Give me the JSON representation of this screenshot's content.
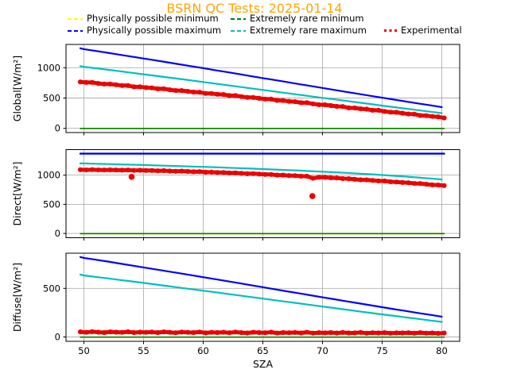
{
  "title": {
    "text": "BSRN QC Tests: 2025-01-14",
    "color": "#ffa500"
  },
  "legend": {
    "items": [
      {
        "label": "Physically possible minimum",
        "color": "#ffff00",
        "style": "dashed"
      },
      {
        "label": "Physically possible maximum",
        "color": "#0000ff",
        "style": "dashed"
      },
      {
        "label": "Extremely rare minimum",
        "color": "#008000",
        "style": "dashed"
      },
      {
        "label": "Extremely rare maximum",
        "color": "#00bfbf",
        "style": "dashed"
      },
      {
        "label": "Experimental",
        "color": "#ee0000",
        "style": "dotted"
      }
    ]
  },
  "xlabel": "SZA",
  "colors": {
    "grid": "#b0b0b0",
    "spine": "#000000",
    "background": "#ffffff"
  },
  "chart_data": [
    {
      "type": "line",
      "name": "global",
      "ylabel": "Global[W/m²]",
      "xlabel": "SZA",
      "xlim": [
        48.5,
        81.5
      ],
      "ylim": [
        -70,
        1384
      ],
      "xticks": [
        50,
        55,
        60,
        65,
        70,
        75,
        80
      ],
      "yticks": [
        0,
        500,
        1000
      ],
      "grid": true,
      "x_grid": [
        49.7,
        50,
        51,
        52,
        53,
        54,
        55,
        56,
        57,
        58,
        59,
        60,
        61,
        62,
        63,
        64,
        65,
        66,
        67,
        68,
        69,
        70,
        71,
        72,
        73,
        74,
        75,
        76,
        77,
        78,
        79,
        80
      ],
      "series": [
        {
          "name": "Physically possible minimum",
          "color": "#ffff00",
          "y_const": -4,
          "width": 1.6
        },
        {
          "name": "Extremely rare minimum",
          "color": "#008000",
          "y_const": -2,
          "width": 1.6
        },
        {
          "name": "Physically possible maximum",
          "color": "#0000ff",
          "x": "grid",
          "width": 2.2,
          "y": [
            1321,
            1307,
            1276,
            1246,
            1215,
            1184,
            1152,
            1121,
            1089,
            1057,
            1025,
            993,
            960,
            928,
            895,
            862,
            829,
            797,
            764,
            731,
            699,
            666,
            633,
            601,
            569,
            537,
            505,
            473,
            442,
            411,
            381,
            351
          ]
        },
        {
          "name": "Extremely rare maximum",
          "color": "#00bfbf",
          "x": "grid",
          "width": 2.2,
          "y": [
            1027,
            1015,
            991,
            966,
            942,
            917,
            892,
            866,
            841,
            816,
            790,
            764,
            738,
            712,
            686,
            660,
            633,
            607,
            581,
            555,
            529,
            503,
            477,
            452,
            426,
            401,
            374,
            349,
            324,
            299,
            275,
            251
          ]
        },
        {
          "name": "Experimental",
          "color": "#ee0000",
          "marker": true,
          "x_start": 49.7,
          "x_step": 0.5,
          "y": [
            766,
            756,
            758,
            741,
            730,
            730,
            718,
            706,
            705,
            685,
            685,
            673,
            668,
            652,
            653,
            636,
            623,
            623,
            610,
            598,
            596,
            576,
            575,
            562,
            557,
            540,
            540,
            523,
            510,
            509,
            495,
            483,
            481,
            460,
            458,
            445,
            439,
            422,
            422,
            404,
            390,
            389,
            375,
            362,
            359,
            338,
            336,
            322,
            316,
            298,
            298,
            279,
            266,
            264,
            250,
            236,
            234,
            212,
            209,
            196,
            189,
            171
          ]
        }
      ]
    },
    {
      "type": "line",
      "name": "direct",
      "ylabel": "Direct[W/m²]",
      "xlabel": "SZA",
      "xlim": [
        48.5,
        81.5
      ],
      "ylim": [
        -73,
        1436
      ],
      "xticks": [
        50,
        55,
        60,
        65,
        70,
        75,
        80
      ],
      "yticks": [
        0,
        500,
        1000
      ],
      "grid": true,
      "x_grid": [
        49.7,
        50,
        51,
        52,
        53,
        54,
        55,
        56,
        57,
        58,
        59,
        60,
        61,
        62,
        63,
        64,
        65,
        66,
        67,
        68,
        69,
        70,
        71,
        72,
        73,
        74,
        75,
        76,
        77,
        78,
        79,
        80
      ],
      "series": [
        {
          "name": "Physically possible minimum",
          "color": "#ffff00",
          "y_const": -4,
          "width": 1.6
        },
        {
          "name": "Extremely rare minimum",
          "color": "#008000",
          "y_const": -2,
          "width": 1.6
        },
        {
          "name": "Physically possible maximum",
          "color": "#0000ff",
          "y_const": 1367,
          "width": 2.4
        },
        {
          "name": "Extremely rare maximum",
          "color": "#00bfbf",
          "x": "grid",
          "width": 2.2,
          "y": [
            1199,
            1199,
            1194,
            1189,
            1183,
            1178,
            1172,
            1166,
            1160,
            1154,
            1147,
            1141,
            1134,
            1126,
            1119,
            1111,
            1103,
            1095,
            1086,
            1077,
            1068,
            1058,
            1048,
            1037,
            1026,
            1014,
            1001,
            988,
            974,
            959,
            942,
            925
          ]
        },
        {
          "name": "Experimental",
          "color": "#ee0000",
          "marker": true,
          "x_start": 49.7,
          "x_step": 0.5,
          "y": [
            1092,
            1088,
            1093,
            1088,
            1086,
            1090,
            1087,
            1084,
            1087,
            1080,
            1082,
            1078,
            1079,
            1073,
            1076,
            1069,
            1065,
            1067,
            1062,
            1057,
            1059,
            1050,
            1050,
            1045,
            1044,
            1036,
            1037,
            1029,
            1023,
            1024,
            1017,
            1010,
            1011,
            1000,
            999,
            992,
            990,
            980,
            980,
            945,
            963,
            961,
            953,
            950,
            940,
            939,
            928,
            920,
            918,
            909,
            900,
            899,
            885,
            882,
            873,
            869,
            857,
            855,
            843,
            833,
            830,
            820
          ],
          "outliers": [
            [
              54.0,
              970
            ],
            [
              69.15,
              640
            ]
          ]
        }
      ]
    },
    {
      "type": "line",
      "name": "diffuse",
      "ylabel": "Diffuse[W/m²]",
      "xlabel": "SZA",
      "xlim": [
        48.5,
        81.5
      ],
      "ylim": [
        -45,
        862
      ],
      "xticks": [
        50,
        55,
        60,
        65,
        70,
        75,
        80
      ],
      "yticks": [
        0,
        500
      ],
      "grid": true,
      "x_grid": [
        49.7,
        50,
        51,
        52,
        53,
        54,
        55,
        56,
        57,
        58,
        59,
        60,
        61,
        62,
        63,
        64,
        65,
        66,
        67,
        68,
        69,
        70,
        71,
        72,
        73,
        74,
        75,
        76,
        77,
        78,
        79,
        80
      ],
      "series": [
        {
          "name": "Physically possible minimum",
          "color": "#ffff00",
          "y_const": -4,
          "width": 1.6
        },
        {
          "name": "Extremely rare minimum",
          "color": "#008000",
          "y_const": -2,
          "width": 1.6
        },
        {
          "name": "Physically possible maximum",
          "color": "#0000ff",
          "x": "grid",
          "width": 2.2,
          "y": [
            823,
            814,
            795,
            776,
            756,
            736,
            716,
            696,
            676,
            656,
            636,
            615,
            595,
            574,
            554,
            533,
            512,
            491,
            470,
            450,
            429,
            408,
            388,
            367,
            347,
            327,
            306,
            286,
            267,
            247,
            228,
            209
          ]
        },
        {
          "name": "Extremely rare maximum",
          "color": "#00bfbf",
          "x": "grid",
          "width": 2.2,
          "y": [
            641,
            633,
            618,
            603,
            587,
            572,
            556,
            540,
            524,
            508,
            492,
            476,
            460,
            444,
            427,
            411,
            395,
            378,
            362,
            346,
            329,
            313,
            297,
            281,
            264,
            248,
            232,
            217,
            201,
            186,
            170,
            155
          ]
        },
        {
          "name": "Experimental",
          "color": "#ee0000",
          "marker": true,
          "x_start": 49.7,
          "x_step": 0.5,
          "y": [
            52,
            47,
            54,
            49,
            45,
            52,
            49,
            47,
            53,
            45,
            49,
            47,
            50,
            45,
            52,
            47,
            43,
            50,
            47,
            45,
            51,
            42,
            47,
            45,
            48,
            43,
            50,
            44,
            41,
            48,
            45,
            43,
            49,
            40,
            45,
            43,
            46,
            41,
            48,
            39,
            44,
            42,
            45,
            40,
            46,
            41,
            42,
            46,
            38,
            43,
            41,
            44,
            38,
            42,
            41,
            43,
            38,
            44,
            39,
            41,
            37,
            40
          ]
        }
      ]
    }
  ]
}
